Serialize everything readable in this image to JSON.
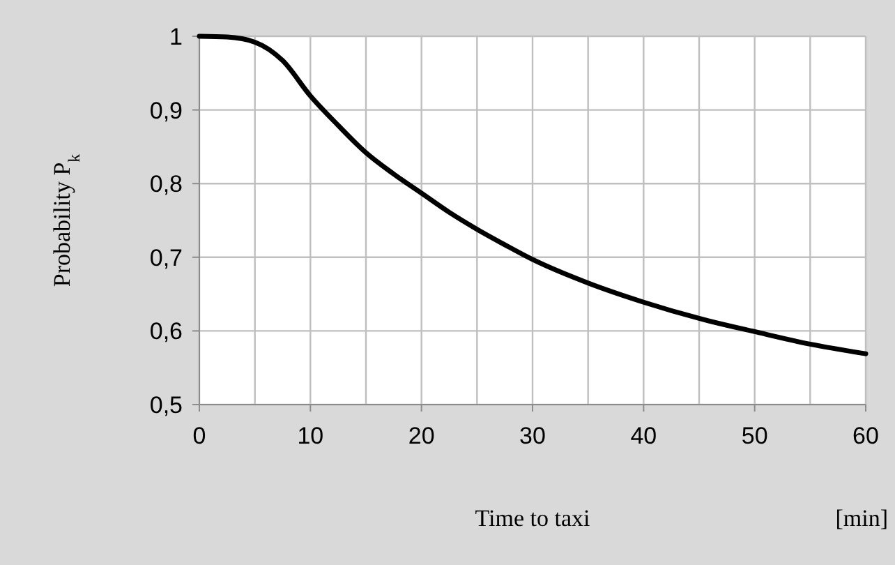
{
  "chart_data": {
    "type": "line",
    "xlabel": "Time to taxi",
    "ylabel": "Probability P$_{k}$",
    "annotations": [
      "[min]"
    ],
    "x": [
      0,
      2.5,
      5,
      7.5,
      10,
      12.5,
      15,
      17.5,
      20,
      22.5,
      25,
      27.5,
      30,
      35,
      40,
      45,
      50,
      55,
      60
    ],
    "series": [
      {
        "color": "#000000",
        "values": [
          1.0,
          0.999,
          0.992,
          0.967,
          0.919,
          0.879,
          0.842,
          0.813,
          0.787,
          0.761,
          0.738,
          0.717,
          0.697,
          0.665,
          0.639,
          0.617,
          0.599,
          0.582,
          0.569
        ]
      }
    ],
    "xlim": [
      0,
      60
    ],
    "xticks": [
      0,
      {
        "value": 5,
        "label": null
      },
      10,
      {
        "value": 15,
        "label": null
      },
      20,
      {
        "value": 25,
        "label": null
      },
      30,
      {
        "value": 35,
        "label": null
      },
      40,
      {
        "value": 45,
        "label": null
      },
      50,
      {
        "value": 55,
        "label": null
      },
      60
    ],
    "ylim": [
      0.5,
      1
    ],
    "yticks": [
      {
        "value": 0.5,
        "label": "0,5"
      },
      {
        "value": 0.6,
        "label": "0,6"
      },
      {
        "value": 0.7,
        "label": "0,7"
      },
      {
        "value": 0.8,
        "label": "0,8"
      },
      {
        "value": 0.9,
        "label": "0,9"
      },
      1
    ],
    "grid": true,
    "marker": "none",
    "line_style": "solid"
  }
}
